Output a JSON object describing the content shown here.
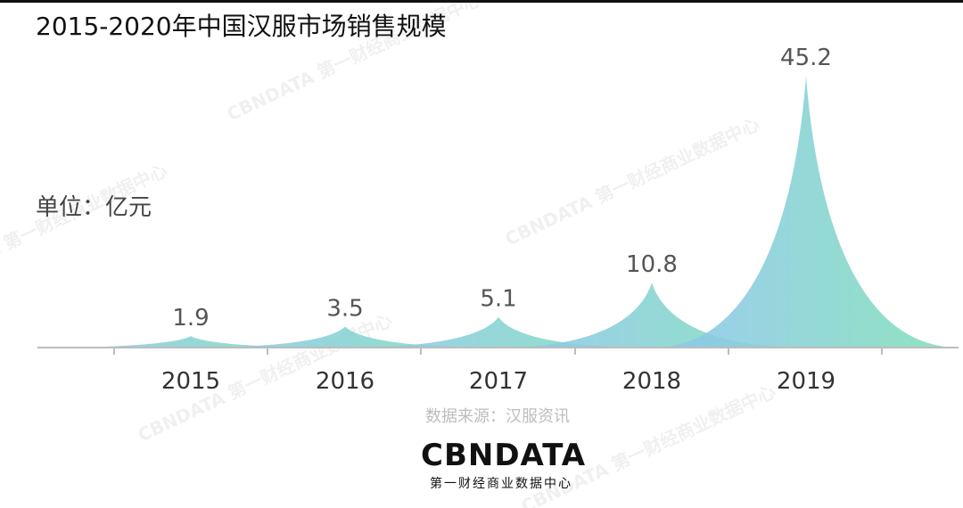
{
  "title": "2015-2020年中国汉服市场销售规模",
  "unit_label": "单位：亿元",
  "source": "数据来源：汉服资讯",
  "logo": {
    "text": "CBNDATA",
    "subtitle": "第一财经商业数据中心"
  },
  "watermark": "CBNDATA 第一财经商业数据中心",
  "colors": {
    "start": "#8ec5ef",
    "end": "#7fe0b6",
    "axis": "#bdbdbd",
    "label": "#555555"
  },
  "chart_data": {
    "type": "area",
    "categories": [
      "2015",
      "2016",
      "2017",
      "2018",
      "2019"
    ],
    "values": [
      1.9,
      3.5,
      5.1,
      10.8,
      45.2
    ],
    "title": "2015-2020年中国汉服市场销售规模",
    "xlabel": "",
    "ylabel": "单位：亿元",
    "ylim": [
      0,
      50
    ],
    "grid": false,
    "legend": "none"
  }
}
